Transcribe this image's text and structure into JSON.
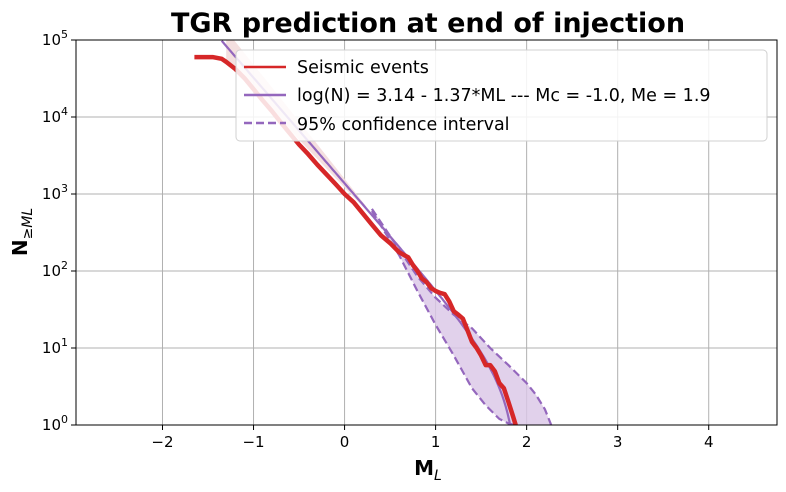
{
  "chart_data": {
    "type": "line",
    "title": "TGR prediction at end of injection",
    "xlabel": "M",
    "xlabel_sub": "L",
    "ylabel": "N",
    "ylabel_sub": "≥ML",
    "xlim": [
      -2.95,
      4.75
    ],
    "ylim": [
      1,
      100000
    ],
    "yscale": "log",
    "x_ticks": [
      -2,
      -1,
      0,
      1,
      2,
      3,
      4
    ],
    "x_tick_labels": [
      "−2",
      "−1",
      "0",
      "1",
      "2",
      "3",
      "4"
    ],
    "y_ticks": [
      1,
      10,
      100,
      1000,
      10000,
      100000
    ],
    "y_tick_base": "10",
    "y_tick_exponents": [
      "0",
      "1",
      "2",
      "3",
      "4",
      "5"
    ],
    "grid": true,
    "legend_position": "top-right",
    "colors": {
      "events": "#d62728",
      "fit": "#9467bd",
      "ci_fill": "#d9c6e6",
      "fit_band_fade": "#f3dcdc"
    },
    "series": [
      {
        "name": "Seismic events",
        "style": "solid-thick",
        "x": [
          -1.65,
          -1.45,
          -1.35,
          -1.3,
          -1.2,
          -1.1,
          -1.0,
          -0.9,
          -0.8,
          -0.7,
          -0.6,
          -0.5,
          -0.4,
          -0.3,
          -0.2,
          -0.1,
          0.0,
          0.1,
          0.2,
          0.3,
          0.4,
          0.5,
          0.6,
          0.7,
          0.75,
          0.8,
          0.85,
          0.9,
          0.95,
          1.0,
          1.05,
          1.1,
          1.15,
          1.2,
          1.25,
          1.3,
          1.35,
          1.4,
          1.45,
          1.5,
          1.55,
          1.6,
          1.65,
          1.7,
          1.75,
          1.8,
          1.85,
          1.88
        ],
        "y": [
          60000,
          60000,
          57000,
          52000,
          42000,
          32000,
          23000,
          16500,
          12000,
          8500,
          6100,
          4400,
          3300,
          2400,
          1800,
          1350,
          1000,
          780,
          560,
          400,
          290,
          230,
          175,
          150,
          120,
          100,
          80,
          72,
          60,
          55,
          52,
          50,
          40,
          30,
          27,
          24,
          17,
          12,
          10,
          8,
          6,
          6,
          5,
          3.5,
          3,
          2,
          1.3,
          1
        ]
      },
      {
        "name": "log(N) = 3.14 - 1.37*ML --- Mc = -1.0, Me = 1.9",
        "style": "solid",
        "model": {
          "a": 3.14,
          "b": 1.37,
          "Mc": -1.0,
          "Me": 1.9
        },
        "x_range": [
          -1.35,
          1.9
        ]
      },
      {
        "name": "95% confidence interval",
        "style": "dashed",
        "lower": {
          "x": [
            0.3,
            0.6,
            0.8,
            1.0,
            1.2,
            1.4,
            1.55,
            1.7,
            1.8,
            1.87
          ],
          "y": [
            600,
            160,
            55,
            20,
            8,
            3,
            1.8,
            1.2,
            1.05,
            1.0
          ]
        },
        "upper": {
          "x": [
            0.3,
            0.6,
            0.8,
            1.0,
            1.2,
            1.4,
            1.6,
            1.8,
            2.0,
            2.1,
            2.2,
            2.27
          ],
          "y": [
            640,
            190,
            85,
            45,
            27,
            18,
            10,
            6,
            3.5,
            2.5,
            1.6,
            1.0
          ]
        }
      }
    ]
  }
}
